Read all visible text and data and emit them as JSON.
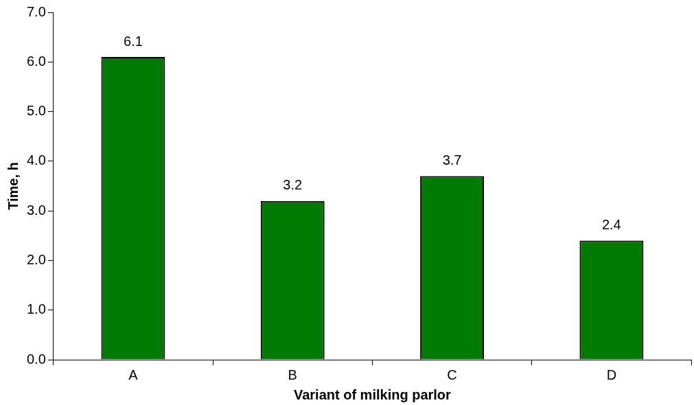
{
  "chart_data": {
    "type": "bar",
    "xlabel": "Variant of milking parlor",
    "ylabel": "Time, h",
    "categories": [
      "A",
      "B",
      "C",
      "D"
    ],
    "values": [
      6.1,
      3.2,
      3.7,
      2.4
    ],
    "color": "#007a00",
    "ylim": [
      0,
      7
    ],
    "yticks": [
      {
        "value": 0,
        "label": "0.0"
      },
      {
        "value": 1,
        "label": "1.0"
      },
      {
        "value": 2,
        "label": "2.0"
      },
      {
        "value": 3,
        "label": "3.0"
      },
      {
        "value": 4,
        "label": "4.0"
      },
      {
        "value": 5,
        "label": "5.0"
      },
      {
        "value": 6,
        "label": "6.0"
      },
      {
        "value": 7,
        "label": "7.0"
      }
    ],
    "data_labels": true,
    "grid": false,
    "legend": false
  }
}
